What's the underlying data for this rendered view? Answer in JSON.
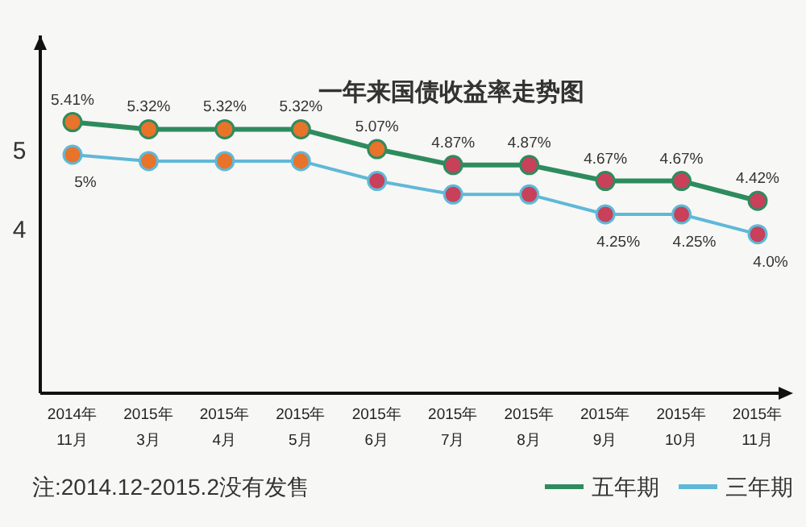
{
  "chart_data": {
    "type": "line",
    "title": "一年来国债收益率走势图",
    "categories": [
      "2014年\n11月",
      "2015年\n3月",
      "2015年\n4月",
      "2015年\n5月",
      "2015年\n6月",
      "2015年\n7月",
      "2015年\n8月",
      "2015年\n9月",
      "2015年\n10月",
      "2015年\n11月"
    ],
    "series": [
      {
        "name": "五年期",
        "color": "#2e8b5e",
        "colors": [
          "#e8732a",
          "#e8732a",
          "#e8732a",
          "#e8732a",
          "#e8732a",
          "#c8405a",
          "#c8405a",
          "#c8405a",
          "#c8405a",
          "#c8405a"
        ],
        "values": [
          5.41,
          5.32,
          5.32,
          5.32,
          5.07,
          4.87,
          4.87,
          4.67,
          4.67,
          4.42
        ],
        "value_labels": [
          "5.41%",
          "5.32%",
          "5.32%",
          "5.32%",
          "5.07%",
          "4.87%",
          "4.87%",
          "4.67%",
          "4.67%",
          "4.42%"
        ]
      },
      {
        "name": "三年期",
        "color": "#5fb8d8",
        "colors": [
          "#e8732a",
          "#e8732a",
          "#e8732a",
          "#e8732a",
          "#c8405a",
          "#c8405a",
          "#c8405a",
          "#c8405a",
          "#c8405a",
          "#c8405a"
        ],
        "values": [
          5.0,
          4.92,
          4.92,
          4.92,
          4.67,
          4.5,
          4.5,
          4.25,
          4.25,
          4.0
        ],
        "value_labels": [
          "5%",
          null,
          null,
          null,
          null,
          null,
          null,
          "4.25%",
          "4.25%",
          "4.0%"
        ]
      }
    ],
    "ylim": [
      2,
      6.5
    ],
    "yticks": [
      4,
      5
    ],
    "marker": "circle",
    "legend": "bottom right",
    "annotations": [
      "注:2014.12-2015.2没有发售"
    ]
  }
}
